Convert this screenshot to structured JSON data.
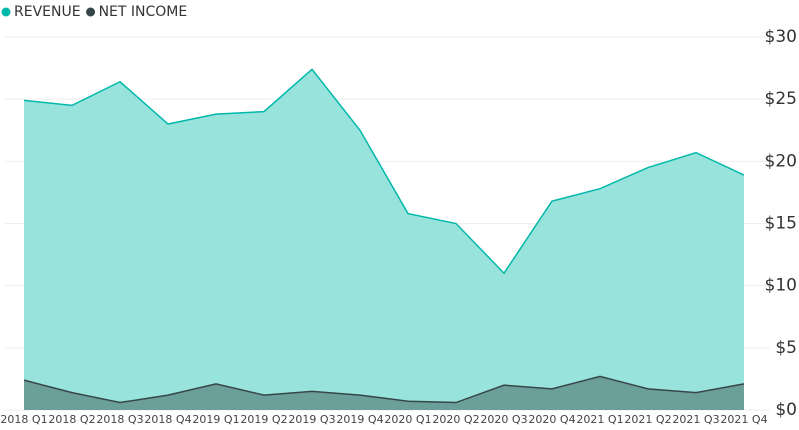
{
  "chart_data": {
    "type": "area",
    "categories": [
      "2018 Q1",
      "2018 Q2",
      "2018 Q3",
      "2018 Q4",
      "2019 Q1",
      "2019 Q2",
      "2019 Q3",
      "2019 Q4",
      "2020 Q1",
      "2020 Q2",
      "2020 Q3",
      "2020 Q4",
      "2021 Q1",
      "2021 Q2",
      "2021 Q3",
      "2021 Q4"
    ],
    "series": [
      {
        "name": "REVENUE",
        "color": "#01b8aa",
        "values": [
          24.9,
          24.5,
          26.4,
          23.0,
          23.8,
          24.0,
          27.4,
          22.5,
          15.8,
          15.0,
          11.0,
          16.8,
          17.8,
          19.5,
          20.7,
          18.9
        ]
      },
      {
        "name": "NET INCOME",
        "color": "#374649",
        "values": [
          2.4,
          1.4,
          0.6,
          1.2,
          2.1,
          1.2,
          1.5,
          1.2,
          0.7,
          0.6,
          2.0,
          1.7,
          2.7,
          1.7,
          1.4,
          2.1
        ]
      }
    ],
    "ylim": [
      0,
      30
    ],
    "yticks": [
      {
        "value": 0,
        "label": "$0"
      },
      {
        "value": 5,
        "label": "$5"
      },
      {
        "value": 10,
        "label": "$10"
      },
      {
        "value": 15,
        "label": "$15"
      },
      {
        "value": 20,
        "label": "$20"
      },
      {
        "value": 25,
        "label": "$25"
      },
      {
        "value": 30,
        "label": "$30"
      }
    ],
    "grid": true,
    "legend": "top-left"
  }
}
